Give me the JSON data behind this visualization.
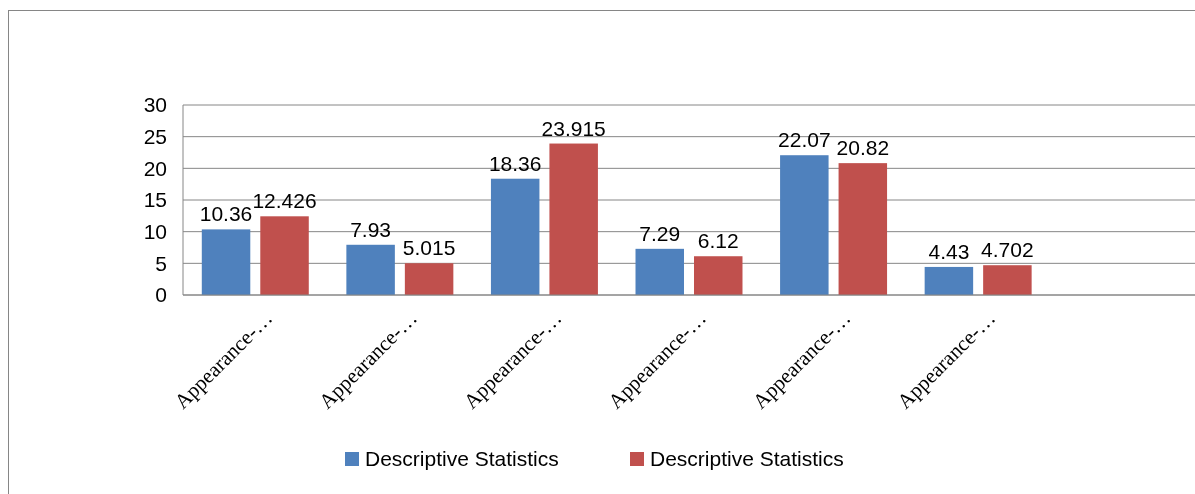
{
  "chart_data": {
    "type": "bar",
    "categories": [
      "Appearance-…",
      "Appearance-…",
      "Appearance-…",
      "Appearance-…",
      "Appearance-…",
      "Appearance-…",
      null
    ],
    "series": [
      {
        "name": "Descriptive Statistics",
        "color": "#4f81bd",
        "values": [
          10.36,
          7.93,
          18.36,
          7.29,
          22.07,
          4.43,
          null
        ]
      },
      {
        "name": "Descriptive Statistics",
        "color": "#c0504d",
        "values": [
          12.426,
          5.015,
          23.915,
          6.12,
          20.82,
          4.702,
          null
        ]
      }
    ],
    "ylim": [
      0,
      30
    ],
    "yticks": [
      0,
      5,
      10,
      15,
      20,
      25,
      30
    ],
    "grid": "y",
    "legend": "bottom",
    "data_labels": true
  }
}
